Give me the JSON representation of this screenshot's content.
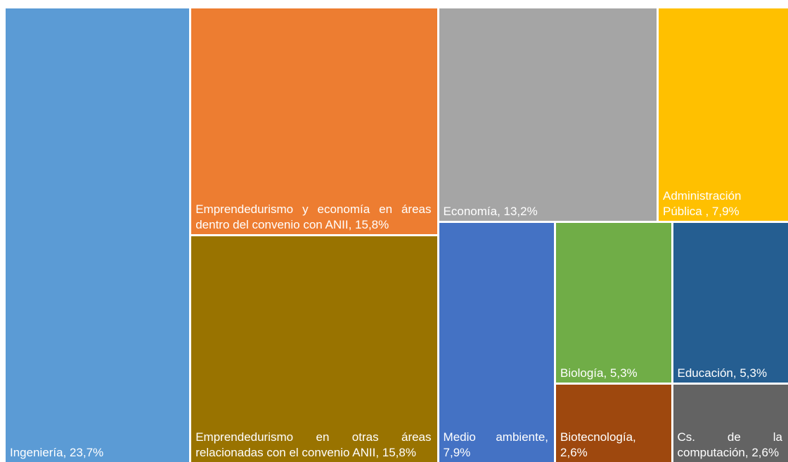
{
  "chart_data": {
    "type": "treemap",
    "labels": [
      "Ingeniería, 23,7%",
      "Emprendedurismo y economía en áreas dentro del convenio con ANII, 15,8%",
      "Emprendedurismo en otras áreas relacionadas con el convenio ANII, 15,8%",
      "Economía, 13,2%",
      "Administración Pública , 7,9%",
      "Medio ambiente, 7,9%",
      "Biología, 5,3%",
      "Biotecnología, 2,6%",
      "Educación, 5,3%",
      "Cs. de la computación, 2,6%"
    ],
    "values": [
      23.7,
      15.8,
      15.8,
      13.2,
      7.9,
      7.9,
      5.3,
      2.6,
      5.3,
      2.6
    ],
    "colors": [
      "#5b9bd5",
      "#ed7d31",
      "#997300",
      "#a5a5a5",
      "#ffc000",
      "#4472c4",
      "#70ad47",
      "#9e480e",
      "#255e91",
      "#636363"
    ]
  }
}
